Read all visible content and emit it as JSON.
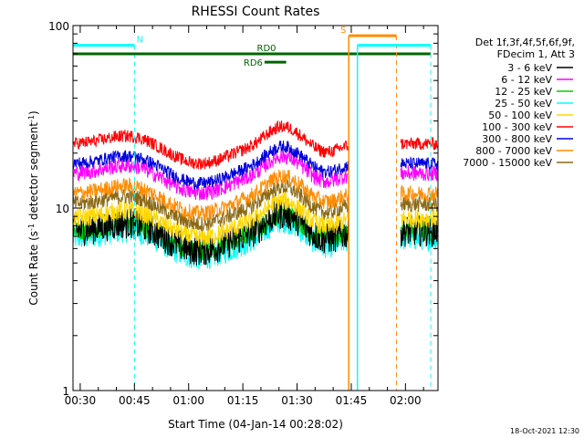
{
  "chart_data": {
    "type": "line",
    "title": "RHESSI Count Rates",
    "xlabel": "Start Time (04-Jan-14 00:28:02)",
    "ylabel": "Count Rate (s",
    "ylabel_sup": "-1",
    "ylabel_tail": " detector segment",
    "ylabel_sup2": "-1",
    "ylabel_close": ")",
    "yscale": "log",
    "ylim": [
      1,
      100
    ],
    "xlim_min": [
      28.0,
      129.0
    ],
    "x_ticks": [
      {
        "label": "00:30",
        "min": 30
      },
      {
        "label": "00:45",
        "min": 45
      },
      {
        "label": "01:00",
        "min": 60
      },
      {
        "label": "01:15",
        "min": 75
      },
      {
        "label": "01:30",
        "min": 90
      },
      {
        "label": "01:45",
        "min": 105
      },
      {
        "label": "02:00",
        "min": 120
      }
    ],
    "y_ticks": [
      {
        "label": "1",
        "value": 1
      },
      {
        "label": "10",
        "value": 10
      },
      {
        "label": "100",
        "value": 100
      }
    ],
    "legend_header": [
      "Det 1f,3f,4f,5f,6f,9f,",
      "FDecim 1, Att 3"
    ],
    "legend_position": "right",
    "series": [
      {
        "name": "3 - 6 keV",
        "color": "#000000",
        "base": 7.5,
        "noise": 0.2
      },
      {
        "name": "6 - 12 keV",
        "color": "#ff00ff",
        "base": 15.5,
        "noise": 0.1
      },
      {
        "name": "12 - 25 keV",
        "color": "#00d000",
        "base": 7.5,
        "noise": 0.13
      },
      {
        "name": "25 - 50 keV",
        "color": "#00ffff",
        "base": 6.8,
        "noise": 0.15
      },
      {
        "name": "50 - 100 keV",
        "color": "#ffd700",
        "base": 8.8,
        "noise": 0.12
      },
      {
        "name": "100 - 300 keV",
        "color": "#ff0000",
        "base": 22.5,
        "noise": 0.08
      },
      {
        "name": "300 - 800 keV",
        "color": "#0000dd",
        "base": 17.5,
        "noise": 0.08
      },
      {
        "name": "800 - 7000 keV",
        "color": "#ff8c00",
        "base": 12.0,
        "noise": 0.1
      },
      {
        "name": "7000 - 15000 keV",
        "color": "#8b6914",
        "base": 10.5,
        "noise": 0.1
      }
    ],
    "data_segments_min": [
      [
        28.0,
        104.3
      ],
      [
        118.7,
        129.0
      ]
    ],
    "flags": [
      {
        "label": "N",
        "color": "#00ffff",
        "y": 78,
        "start_min": 28.0,
        "end_min": 45.0,
        "vlines_min": [
          28.0,
          45.0
        ]
      },
      {
        "label": "RD0",
        "color": "#006400",
        "y": 70,
        "start_min": 28.0,
        "end_min": 127.0,
        "vlines_min": []
      },
      {
        "label": "RD6",
        "color": "#006400",
        "y": 63,
        "start_min": 81.0,
        "end_min": 87.0,
        "vlines_min": []
      },
      {
        "label": "S",
        "color": "#ff8c00",
        "y": 88,
        "start_min": 104.3,
        "end_min": 117.5,
        "vlines_min": [
          104.3,
          117.5
        ]
      },
      {
        "label": "",
        "color": "#00ffff",
        "y": 78,
        "start_min": 106.7,
        "end_min": 127.0,
        "vlines_min": [
          106.7,
          127.0
        ]
      }
    ],
    "footer": "18-Oct-2021 12:30",
    "grid": false
  }
}
